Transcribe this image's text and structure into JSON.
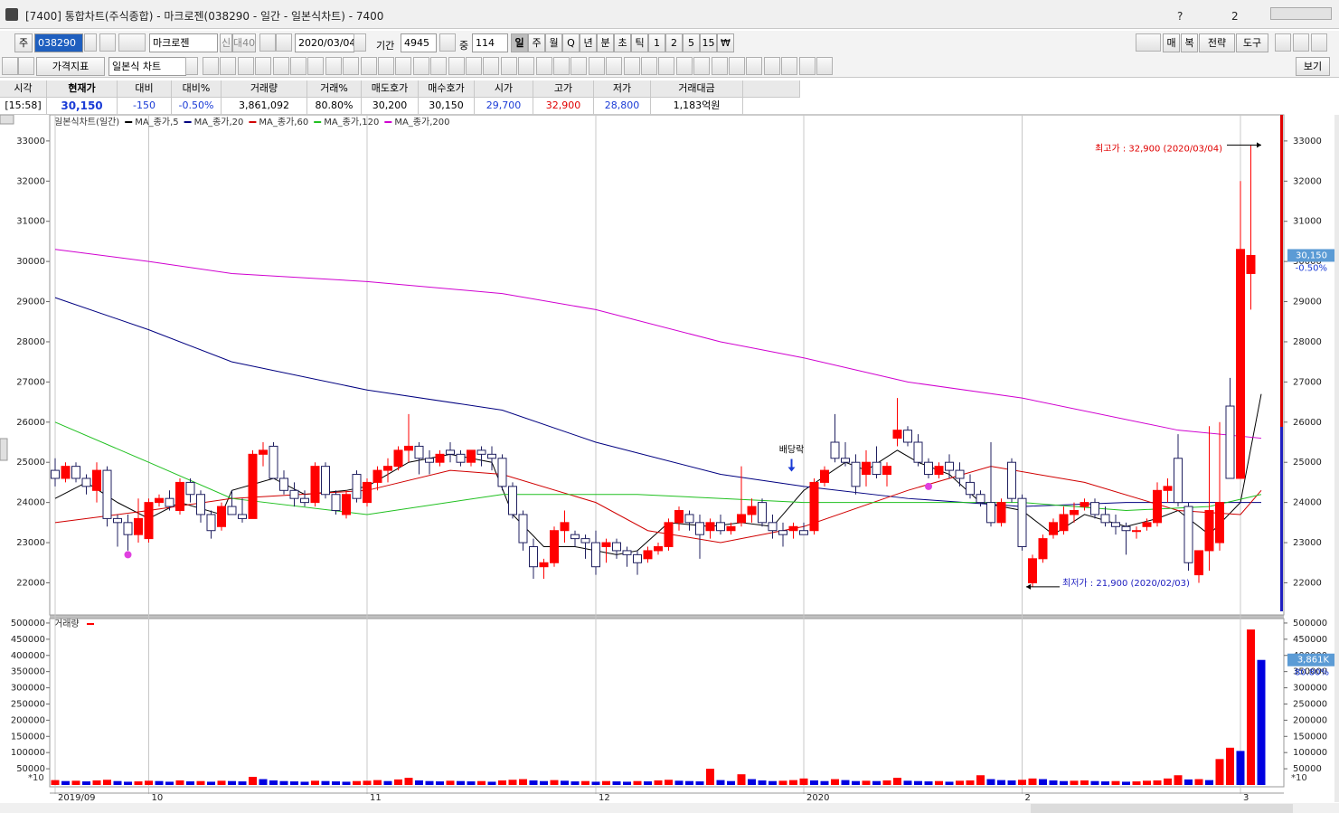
{
  "window": {
    "title": "[7400]  통합차트(주식종합) - 마크로젠(038290 - 일간 - 일본식차트) - 7400",
    "icons": [
      "?",
      "2"
    ]
  },
  "toolbar": {
    "market": "주",
    "code": "038290",
    "name": "마크로젠",
    "credit": "신",
    "deposit": "대40",
    "date": "2020/03/04",
    "period_label": "기간",
    "period": "4945",
    "count_label": "중",
    "count": "114",
    "periods": [
      "일",
      "주",
      "월",
      "Q",
      "년",
      "분",
      "초",
      "틱",
      "1",
      "2",
      "5",
      "15",
      "₩"
    ],
    "right_buttons": [
      "매",
      "복",
      "전략",
      "도구"
    ],
    "indicator": "가격지표",
    "chart_style": "일본식 차트",
    "view": "보기"
  },
  "quote": {
    "headers": [
      "시각",
      "현재가",
      "대비",
      "대비%",
      "거래량",
      "거래%",
      "매도호가",
      "매수호가",
      "시가",
      "고가",
      "저가",
      "거래대금"
    ],
    "values": [
      "[15:58]",
      "30,150",
      "-150",
      "-0.50%",
      "3,861,092",
      "80.80%",
      "30,200",
      "30,150",
      "29,700",
      "32,900",
      "28,800",
      "1,183억원"
    ]
  },
  "chart_data": {
    "type": "candlestick",
    "title": "일본식차트(일간)",
    "up_color": "#ff0000",
    "down_color": "#ffffff",
    "down_edge": "#202060",
    "ylim": [
      21200,
      33650
    ],
    "yticks": [
      22000,
      23000,
      24000,
      25000,
      26000,
      27000,
      28000,
      29000,
      30000,
      31000,
      32000,
      33000
    ],
    "xticks": [
      {
        "value": 0,
        "label": "2019/09"
      },
      {
        "value": 9,
        "label": "10"
      },
      {
        "value": 30,
        "label": "11"
      },
      {
        "value": 52,
        "label": "12"
      },
      {
        "value": 72,
        "label": "2020"
      },
      {
        "value": 93,
        "label": "2"
      },
      {
        "value": 114,
        "label": "3"
      }
    ],
    "grid": true,
    "candles": [
      [
        24800,
        25100,
        24400,
        24600
      ],
      [
        24600,
        25000,
        24500,
        24900
      ],
      [
        24900,
        25000,
        24500,
        24600
      ],
      [
        24600,
        24700,
        24200,
        24400
      ],
      [
        24300,
        25000,
        24000,
        24800
      ],
      [
        24800,
        24900,
        23400,
        23600
      ],
      [
        23600,
        23700,
        22900,
        23500
      ],
      [
        23500,
        23700,
        22800,
        23200
      ],
      [
        23200,
        24100,
        23000,
        23600
      ],
      [
        23100,
        24100,
        23000,
        24000
      ],
      [
        24000,
        24200,
        23900,
        24100
      ],
      [
        24100,
        24300,
        23800,
        23900
      ],
      [
        23800,
        24600,
        23700,
        24500
      ],
      [
        24500,
        24600,
        24000,
        24200
      ],
      [
        24200,
        24300,
        23500,
        23700
      ],
      [
        23700,
        23800,
        23100,
        23300
      ],
      [
        23400,
        24000,
        23300,
        23900
      ],
      [
        23900,
        24300,
        23700,
        23700
      ],
      [
        23700,
        24100,
        23500,
        23600
      ],
      [
        23600,
        25300,
        23600,
        25200
      ],
      [
        25200,
        25500,
        24900,
        25300
      ],
      [
        25400,
        25500,
        24600,
        24600
      ],
      [
        24600,
        24800,
        24200,
        24300
      ],
      [
        24300,
        24500,
        23900,
        24100
      ],
      [
        24100,
        24300,
        23900,
        24000
      ],
      [
        24000,
        25000,
        23900,
        24900
      ],
      [
        24900,
        25000,
        24100,
        24200
      ],
      [
        24200,
        24300,
        23700,
        23800
      ],
      [
        23700,
        24300,
        23600,
        24200
      ],
      [
        24700,
        24800,
        24000,
        24100
      ],
      [
        24000,
        24600,
        23900,
        24500
      ],
      [
        24500,
        24900,
        24300,
        24800
      ],
      [
        24800,
        25100,
        24500,
        24900
      ],
      [
        24900,
        25400,
        24800,
        25300
      ],
      [
        25300,
        26200,
        25000,
        25400
      ],
      [
        25400,
        25500,
        24700,
        25100
      ],
      [
        25100,
        25300,
        24700,
        25000
      ],
      [
        25000,
        25300,
        24900,
        25200
      ],
      [
        25300,
        25500,
        25000,
        25200
      ],
      [
        25200,
        25300,
        24900,
        25000
      ],
      [
        25000,
        25300,
        24900,
        25300
      ],
      [
        25300,
        25400,
        24900,
        25200
      ],
      [
        25200,
        25400,
        24800,
        25100
      ],
      [
        25100,
        25200,
        24300,
        24400
      ],
      [
        24400,
        24500,
        23600,
        23700
      ],
      [
        23700,
        23800,
        22800,
        23000
      ],
      [
        22900,
        23100,
        22100,
        22400
      ],
      [
        22400,
        22600,
        22100,
        22500
      ],
      [
        22500,
        23400,
        22400,
        23300
      ],
      [
        23300,
        23800,
        23000,
        23500
      ],
      [
        23200,
        23300,
        22900,
        23100
      ],
      [
        23100,
        23200,
        22600,
        23000
      ],
      [
        23000,
        23300,
        22200,
        22400
      ],
      [
        22900,
        23100,
        22500,
        23000
      ],
      [
        23000,
        23100,
        22600,
        22800
      ],
      [
        22800,
        22900,
        22400,
        22700
      ],
      [
        22700,
        22800,
        22200,
        22500
      ],
      [
        22600,
        22900,
        22500,
        22800
      ],
      [
        22800,
        23000,
        22700,
        22900
      ],
      [
        22900,
        23600,
        22800,
        23500
      ],
      [
        23500,
        23900,
        23300,
        23800
      ],
      [
        23700,
        23800,
        23300,
        23500
      ],
      [
        23500,
        23700,
        22600,
        23200
      ],
      [
        23300,
        23600,
        23100,
        23500
      ],
      [
        23500,
        23700,
        23200,
        23300
      ],
      [
        23300,
        23500,
        23200,
        23400
      ],
      [
        23500,
        24900,
        23400,
        23700
      ],
      [
        23700,
        24100,
        23500,
        23900
      ],
      [
        24000,
        24100,
        23400,
        23500
      ],
      [
        23500,
        23700,
        23100,
        23300
      ],
      [
        23300,
        23500,
        22900,
        23200
      ],
      [
        23300,
        23500,
        23100,
        23400
      ],
      [
        23300,
        23500,
        23200,
        23200
      ],
      [
        23300,
        24600,
        23200,
        24500
      ],
      [
        24500,
        24900,
        24400,
        24800
      ],
      [
        25500,
        26200,
        25000,
        25100
      ],
      [
        25100,
        25500,
        24900,
        25000
      ],
      [
        25000,
        25200,
        24200,
        24400
      ],
      [
        24700,
        25300,
        24400,
        25000
      ],
      [
        25000,
        25400,
        24600,
        24700
      ],
      [
        24700,
        25000,
        24400,
        24900
      ],
      [
        25600,
        26600,
        25400,
        25800
      ],
      [
        25800,
        25900,
        25400,
        25500
      ],
      [
        25500,
        25700,
        24900,
        25000
      ],
      [
        25000,
        25100,
        24600,
        24700
      ],
      [
        24700,
        25000,
        24600,
        24900
      ],
      [
        25000,
        25200,
        24600,
        24800
      ],
      [
        24800,
        25000,
        24400,
        24600
      ],
      [
        24500,
        24700,
        24100,
        24200
      ],
      [
        24200,
        24300,
        23900,
        24000
      ],
      [
        24000,
        25500,
        23400,
        23500
      ],
      [
        23500,
        24100,
        23400,
        24000
      ],
      [
        25000,
        25100,
        24000,
        24100
      ],
      [
        24100,
        24200,
        22800,
        22900
      ],
      [
        22000,
        22700,
        21900,
        22600
      ],
      [
        22600,
        23200,
        22500,
        23100
      ],
      [
        23200,
        23600,
        23100,
        23500
      ],
      [
        23300,
        23900,
        23200,
        23700
      ],
      [
        23700,
        24000,
        23500,
        23800
      ],
      [
        23900,
        24100,
        23800,
        24000
      ],
      [
        24000,
        24100,
        23600,
        23700
      ],
      [
        23700,
        23900,
        23400,
        23500
      ],
      [
        23500,
        23700,
        23200,
        23400
      ],
      [
        23400,
        23500,
        22700,
        23300
      ],
      [
        23300,
        23400,
        23100,
        23300
      ],
      [
        23400,
        23600,
        23300,
        23500
      ],
      [
        23500,
        24500,
        23400,
        24300
      ],
      [
        24300,
        24600,
        24000,
        24400
      ],
      [
        25100,
        25700,
        23900,
        24000
      ],
      [
        23900,
        24000,
        22300,
        22500
      ],
      [
        22200,
        22800,
        22000,
        22800
      ],
      [
        22800,
        25900,
        22300,
        23800
      ],
      [
        23000,
        26000,
        22800,
        24000
      ],
      [
        26400,
        27100,
        24600,
        24600
      ],
      [
        24600,
        32000,
        24600,
        30300
      ],
      [
        29700,
        32900,
        28800,
        30150
      ]
    ],
    "series": [
      {
        "name": "MA_종가,5",
        "color": "#000000",
        "x": [
          0,
          3,
          6,
          9,
          12,
          16,
          17,
          21,
          24,
          28,
          30,
          34,
          38,
          42,
          44,
          47,
          50,
          54,
          56,
          59,
          63,
          66,
          69,
          72,
          76,
          78,
          81,
          83,
          86,
          89,
          93,
          96,
          99,
          103,
          106,
          108,
          111,
          114,
          116
        ],
        "values": [
          24100,
          24500,
          24000,
          23600,
          24000,
          23700,
          24300,
          24600,
          24200,
          24300,
          24400,
          25000,
          25200,
          25000,
          23700,
          22900,
          22900,
          22700,
          22800,
          23500,
          23400,
          23500,
          23400,
          24300,
          25000,
          24800,
          25300,
          25000,
          24700,
          24000,
          23800,
          23200,
          23700,
          23400,
          23600,
          23800,
          23200,
          24000,
          26700
        ]
      },
      {
        "name": "MA_종가,20",
        "color": "#000080",
        "x": [
          0,
          9,
          17,
          30,
          43,
          52,
          64,
          72,
          82,
          93,
          103,
          116
        ],
        "values": [
          29100,
          28300,
          27500,
          26800,
          26300,
          25500,
          24700,
          24400,
          24100,
          23900,
          24000,
          24000
        ]
      },
      {
        "name": "MA_종가,60",
        "color": "#d00000",
        "x": [
          0,
          9,
          17,
          30,
          38,
          43,
          52,
          57,
          64,
          72,
          82,
          90,
          99,
          108,
          114,
          116
        ],
        "values": [
          23500,
          23800,
          24100,
          24300,
          24800,
          24700,
          24000,
          23300,
          23000,
          23400,
          24300,
          24900,
          24500,
          23800,
          23700,
          24300
        ]
      },
      {
        "name": "MA_종가,120",
        "color": "#20c020",
        "x": [
          0,
          9,
          17,
          30,
          43,
          56,
          72,
          93,
          103,
          111,
          116
        ],
        "values": [
          26000,
          25000,
          24100,
          23700,
          24200,
          24200,
          24000,
          24000,
          23800,
          23900,
          24200
        ]
      },
      {
        "name": "MA_종가,200",
        "color": "#d000d0",
        "x": [
          0,
          9,
          17,
          30,
          43,
          52,
          64,
          72,
          82,
          93,
          108,
          116
        ],
        "values": [
          30300,
          30000,
          29700,
          29500,
          29200,
          28800,
          28000,
          27600,
          27000,
          26600,
          25800,
          25600
        ]
      }
    ],
    "annotations": [
      {
        "text": "최고가 : 32,900 (2020/03/04)",
        "x": 116,
        "y": 32900,
        "color": "#e00000"
      },
      {
        "text": "최저가 : 21,900 (2020/02/03)",
        "x": 94,
        "y": 21900,
        "color": "#2020c0"
      },
      {
        "text": "배당락",
        "x": 71,
        "y": 24700,
        "color": "#000000"
      }
    ],
    "dividend_markers": {
      "color": "#e040e0",
      "x": [
        7,
        84
      ],
      "y": [
        22700,
        24400
      ]
    },
    "last_price": {
      "value": 30150,
      "label": "30,150",
      "change": "-0.50%"
    },
    "volume": {
      "title": "거래량",
      "up_color": "#ff0000",
      "down_color": "#0000e0",
      "unit": "*10",
      "ylim": [
        -5600,
        511000
      ],
      "yticks": [
        50000,
        100000,
        150000,
        200000,
        250000,
        300000,
        350000,
        400000,
        450000,
        500000
      ],
      "values": [
        15000,
        12000,
        13000,
        11000,
        14000,
        16000,
        12000,
        10000,
        11000,
        13000,
        12000,
        10000,
        14000,
        11000,
        12000,
        10000,
        13000,
        12000,
        11000,
        25000,
        18000,
        14000,
        12000,
        11000,
        10000,
        13000,
        12000,
        11000,
        10000,
        12000,
        13000,
        15000,
        12000,
        17000,
        22000,
        14000,
        12000,
        11000,
        13000,
        12000,
        11000,
        12000,
        10000,
        14000,
        16000,
        18000,
        14000,
        12000,
        15000,
        13000,
        11000,
        12000,
        10000,
        12000,
        11000,
        10000,
        12000,
        11000,
        14000,
        16000,
        13000,
        12000,
        11000,
        50000,
        15000,
        12000,
        33000,
        18000,
        14000,
        12000,
        13000,
        15000,
        20000,
        14000,
        12000,
        18000,
        15000,
        12000,
        13000,
        12000,
        14000,
        22000,
        13000,
        12000,
        11000,
        12000,
        10000,
        13000,
        14000,
        30000,
        18000,
        15000,
        14000,
        16000,
        20000,
        18000,
        14000,
        12000,
        13000,
        14000,
        12000,
        11000,
        12000,
        10000,
        11000,
        13000,
        14000,
        20000,
        30000,
        17000,
        18000,
        15000,
        80000,
        115000,
        105000,
        480000,
        386109
      ],
      "last": {
        "value": 386109,
        "label": "3,861K",
        "ratio": "80.80%"
      }
    }
  }
}
